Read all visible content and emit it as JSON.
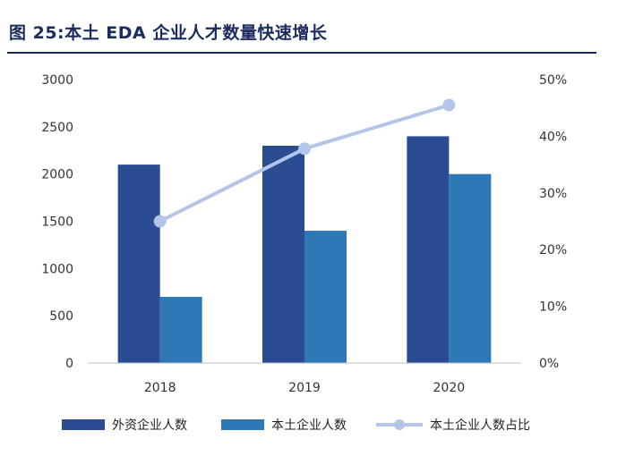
{
  "figure_title": "图 25:本土 EDA 企业人才数量快速增长",
  "colors": {
    "foreign": "#2a4c92",
    "local": "#2f78b7",
    "ratio": "#b3c6e9",
    "title": "#1a2b5e",
    "axis": "#bfbfbf"
  },
  "chart_data": {
    "type": "bar",
    "categories": [
      "2018",
      "2019",
      "2020"
    ],
    "series": [
      {
        "name": "外资企业人数",
        "type": "bar",
        "axis": "left",
        "values": [
          2100,
          2300,
          2400
        ]
      },
      {
        "name": "本土企业人数",
        "type": "bar",
        "axis": "left",
        "values": [
          700,
          1400,
          2000
        ]
      },
      {
        "name": "本土企业人数占比",
        "type": "line",
        "axis": "right",
        "values": [
          0.25,
          0.378,
          0.455
        ]
      }
    ],
    "y_left": {
      "min": 0,
      "max": 3000,
      "ticks": [
        "0",
        "500",
        "1000",
        "1500",
        "2000",
        "2500",
        "3000"
      ]
    },
    "y_right": {
      "min": 0,
      "max": 0.5,
      "ticks": [
        "0%",
        "10%",
        "20%",
        "30%",
        "40%",
        "50%"
      ]
    },
    "grid": false,
    "legend_position": "bottom"
  }
}
